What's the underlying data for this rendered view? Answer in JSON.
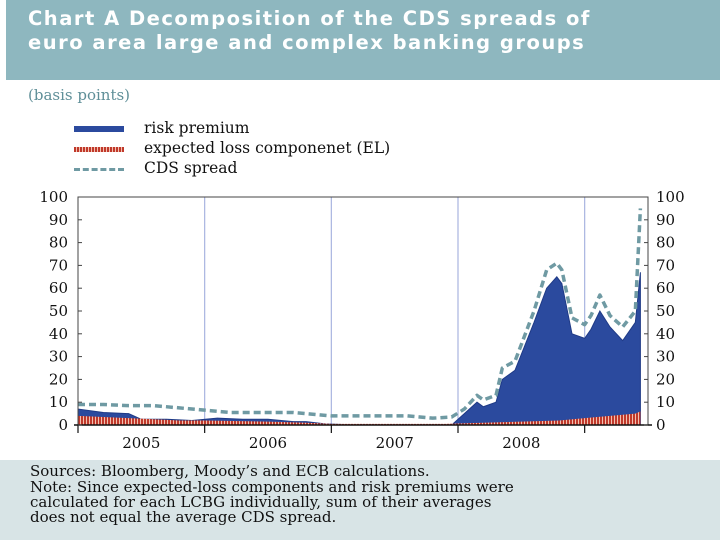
{
  "title": {
    "lines": [
      "Chart A Decomposition of the CDS spreads of",
      "euro area large and complex banking groups"
    ]
  },
  "units": "(basis points)",
  "legend": [
    {
      "label": "risk premium",
      "key": "solid-bar",
      "color": "#2b4a9e"
    },
    {
      "label": "expected loss componenet (EL)",
      "key": "striped-bar",
      "color": "#c0392b"
    },
    {
      "label": "CDS spread",
      "key": "dashed-line",
      "color": "#6f9aa3"
    }
  ],
  "sources": {
    "lines": [
      "Sources: Bloomberg, Moody’s and ECB calculations.",
      "Note: Since expected-loss components and risk premiums were",
      "calculated for each LCBG individually, sum of their averages",
      "does not equal the average CDS spread."
    ]
  },
  "chart_data": {
    "type": "area",
    "title": "Chart A Decomposition of the CDS spreads of euro area large and complex banking groups",
    "ylabel": "(basis points)",
    "xlabel": "",
    "ylim": [
      0,
      100
    ],
    "xlim": [
      2004.0,
      2008.5
    ],
    "yticks": [
      0,
      10,
      20,
      30,
      40,
      50,
      60,
      70,
      80,
      90,
      100
    ],
    "ytick_labels": [
      "0",
      "10",
      "20",
      "30",
      "40",
      "50",
      "60",
      "70",
      "80",
      "90",
      "100"
    ],
    "xtick_labels": [
      "2005",
      "2006",
      "2007",
      "2008"
    ],
    "xtick_label_centers": [
      2004.5,
      2005.5,
      2006.5,
      2007.5
    ],
    "year_boundaries": [
      2005.0,
      2006.0,
      2007.0,
      2008.0
    ],
    "grid": true,
    "legend_position": "top-left",
    "colors": {
      "risk_premium": "#2b4a9e",
      "expected_loss": "#c0392b",
      "cds_spread": "#6f9aa3",
      "grid": "#a9b4e0"
    },
    "series": [
      {
        "name": "risk premium",
        "style": "area",
        "x": [
          2004.0,
          2004.2,
          2004.4,
          2004.5,
          2004.7,
          2004.9,
          2005.1,
          2005.3,
          2005.5,
          2005.7,
          2005.8,
          2005.95,
          2006.2,
          2006.5,
          2006.8,
          2006.95,
          2007.05,
          2007.15,
          2007.2,
          2007.3,
          2007.35,
          2007.45,
          2007.6,
          2007.7,
          2007.78,
          2007.82,
          2007.9,
          2008.0,
          2008.05,
          2008.12,
          2008.2,
          2008.3,
          2008.4,
          2008.44
        ],
        "y": [
          7,
          5.5,
          5,
          2.5,
          2.5,
          2,
          3,
          2.5,
          2.5,
          1.5,
          1.5,
          0.5,
          0,
          0,
          0,
          0,
          5,
          10,
          8,
          10,
          20,
          24,
          45,
          60,
          65,
          62,
          40,
          38,
          42,
          50,
          43,
          37,
          45,
          67
        ]
      },
      {
        "name": "expected loss componenet (EL)",
        "style": "striped-area",
        "x": [
          2004.0,
          2004.2,
          2004.4,
          2004.6,
          2004.8,
          2005.0,
          2005.5,
          2005.8,
          2006.0,
          2006.3,
          2006.6,
          2006.9,
          2007.2,
          2007.5,
          2007.8,
          2008.0,
          2008.2,
          2008.4,
          2008.44
        ],
        "y": [
          4,
          3.5,
          3,
          2.5,
          2,
          2,
          1.5,
          1,
          0.5,
          0.5,
          0.5,
          0.5,
          1,
          1.5,
          2,
          3,
          4,
          5,
          6
        ]
      },
      {
        "name": "CDS spread",
        "style": "dashed-line",
        "x": [
          2004.0,
          2004.2,
          2004.4,
          2004.6,
          2004.8,
          2005.0,
          2005.2,
          2005.5,
          2005.7,
          2005.9,
          2006.0,
          2006.3,
          2006.6,
          2006.8,
          2006.95,
          2007.05,
          2007.15,
          2007.2,
          2007.3,
          2007.35,
          2007.45,
          2007.6,
          2007.7,
          2007.78,
          2007.82,
          2007.9,
          2008.0,
          2008.05,
          2008.12,
          2008.2,
          2008.3,
          2008.4,
          2008.44
        ],
        "y": [
          9,
          9,
          8.5,
          8.5,
          7.5,
          6.5,
          5.5,
          5.5,
          5.5,
          4.5,
          4,
          4,
          4,
          3,
          3.5,
          7,
          13,
          11,
          13,
          25,
          28,
          50,
          68,
          71,
          68,
          47,
          44,
          48,
          57,
          48,
          43,
          50,
          95
        ]
      }
    ]
  }
}
